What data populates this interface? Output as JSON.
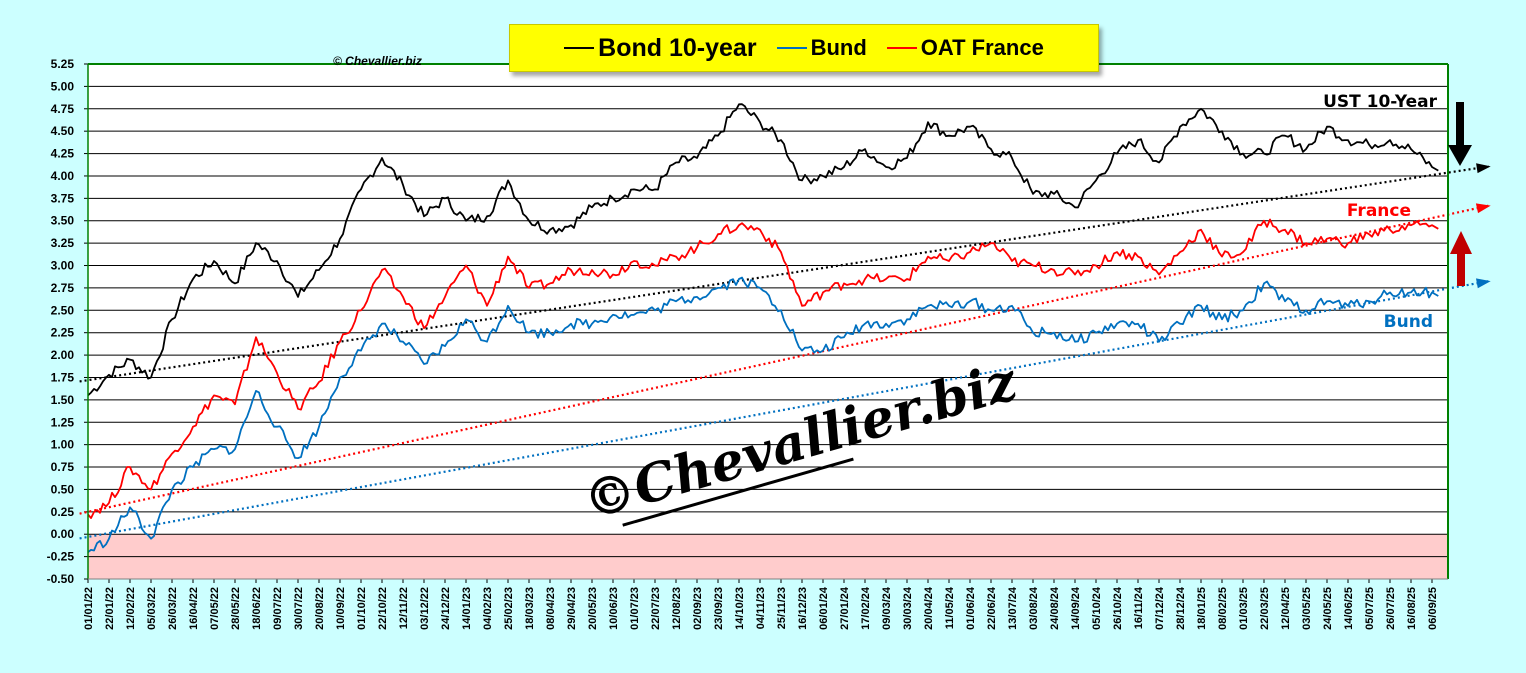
{
  "legend": {
    "items": [
      {
        "label": "Bond 10-year",
        "color": "#000000"
      },
      {
        "label": "Bund",
        "color": "#0070c0"
      },
      {
        "label": "OAT France",
        "color": "#ff0000"
      }
    ]
  },
  "copyright_small": "© Chevallier.biz",
  "watermark": "©Chevallier.biz",
  "chart_data": {
    "type": "line",
    "title": "Bond 10-year / Bund / OAT France",
    "xlabel": "",
    "ylabel": "",
    "ylim": [
      -0.5,
      5.25
    ],
    "ytick_step": 0.25,
    "yticks": [
      "5.25",
      "5.00",
      "4.75",
      "4.50",
      "4.25",
      "4.00",
      "3.75",
      "3.50",
      "3.25",
      "3.00",
      "2.75",
      "2.50",
      "2.25",
      "2.00",
      "1.75",
      "1.50",
      "1.25",
      "1.00",
      "0.75",
      "0.50",
      "0.25",
      "0.00",
      "-0.25",
      "-0.50"
    ],
    "grid": true,
    "negative_zone_color": "#ffcccc",
    "x": [
      "01/01/22",
      "22/01/22",
      "12/02/22",
      "05/03/22",
      "26/03/22",
      "16/04/22",
      "07/05/22",
      "28/05/22",
      "18/06/22",
      "09/07/22",
      "30/07/22",
      "20/08/22",
      "10/09/22",
      "01/10/22",
      "22/10/22",
      "12/11/22",
      "03/12/22",
      "24/12/22",
      "14/01/23",
      "04/02/23",
      "25/02/23",
      "18/03/23",
      "08/04/23",
      "29/04/23",
      "20/05/23",
      "10/06/23",
      "01/07/23",
      "22/07/23",
      "12/08/23",
      "02/09/23",
      "23/09/23",
      "14/10/23",
      "04/11/23",
      "25/11/23",
      "16/12/23",
      "06/01/24",
      "27/01/24",
      "17/02/24",
      "09/03/24",
      "30/03/24",
      "20/04/24",
      "11/05/24",
      "01/06/24",
      "22/06/24",
      "13/07/24",
      "03/08/24",
      "24/08/24",
      "14/09/24",
      "05/10/24",
      "26/10/24",
      "16/11/24",
      "07/12/24",
      "28/12/24",
      "18/01/25",
      "08/02/25",
      "01/03/25",
      "22/03/25",
      "12/04/25",
      "03/05/25",
      "24/05/25",
      "14/06/25",
      "05/07/25",
      "26/07/25",
      "16/08/25",
      "06/09/25"
    ],
    "series": [
      {
        "name": "Bond 10-year",
        "label": "UST 10-Year",
        "color": "#000000",
        "values": [
          1.55,
          1.78,
          1.95,
          1.75,
          2.4,
          2.85,
          3.05,
          2.8,
          3.25,
          3.05,
          2.65,
          2.95,
          3.3,
          3.85,
          4.2,
          3.9,
          3.55,
          3.75,
          3.5,
          3.55,
          3.95,
          3.5,
          3.4,
          3.45,
          3.65,
          3.75,
          3.85,
          3.85,
          4.15,
          4.2,
          4.45,
          4.8,
          4.6,
          4.4,
          3.95,
          4.0,
          4.1,
          4.3,
          4.1,
          4.2,
          4.6,
          4.45,
          4.55,
          4.3,
          4.2,
          3.8,
          3.8,
          3.65,
          3.95,
          4.25,
          4.4,
          4.15,
          4.55,
          4.75,
          4.5,
          4.25,
          4.25,
          4.45,
          4.3,
          4.55,
          4.4,
          4.35,
          4.4,
          4.3,
          4.1
        ],
        "trend": [
          1.72,
          4.01
        ]
      },
      {
        "name": "OAT France",
        "label": "France",
        "color": "#ff0000",
        "values": [
          0.22,
          0.35,
          0.75,
          0.5,
          0.9,
          1.2,
          1.55,
          1.45,
          2.2,
          1.8,
          1.4,
          1.7,
          2.15,
          2.5,
          2.95,
          2.65,
          2.3,
          2.65,
          3.0,
          2.55,
          3.1,
          2.75,
          2.8,
          2.95,
          2.95,
          2.9,
          3.05,
          3.0,
          3.1,
          3.2,
          3.35,
          3.45,
          3.4,
          3.15,
          2.55,
          2.7,
          2.8,
          2.85,
          2.85,
          2.85,
          3.1,
          3.05,
          3.15,
          3.25,
          3.05,
          3.0,
          2.95,
          2.9,
          3.0,
          3.15,
          3.1,
          2.9,
          3.15,
          3.4,
          3.1,
          3.15,
          3.5,
          3.4,
          3.25,
          3.3,
          3.25,
          3.35,
          3.4,
          3.45,
          3.45
        ],
        "trend": [
          0.25,
          3.53
        ]
      },
      {
        "name": "Bund",
        "label": "Bund",
        "color": "#0070c0",
        "values": [
          -0.2,
          -0.05,
          0.3,
          -0.05,
          0.5,
          0.75,
          0.95,
          0.95,
          1.6,
          1.2,
          0.85,
          1.2,
          1.75,
          2.05,
          2.35,
          2.15,
          1.9,
          2.1,
          2.4,
          2.15,
          2.55,
          2.25,
          2.25,
          2.35,
          2.35,
          2.45,
          2.45,
          2.5,
          2.6,
          2.65,
          2.75,
          2.85,
          2.75,
          2.5,
          2.05,
          2.05,
          2.2,
          2.35,
          2.35,
          2.4,
          2.55,
          2.55,
          2.6,
          2.5,
          2.55,
          2.25,
          2.25,
          2.15,
          2.25,
          2.35,
          2.35,
          2.15,
          2.35,
          2.55,
          2.4,
          2.5,
          2.8,
          2.6,
          2.5,
          2.6,
          2.55,
          2.6,
          2.7,
          2.7,
          2.7
        ],
        "trend": [
          -0.03,
          2.71
        ]
      }
    ],
    "annotations": [
      {
        "text": "UST 10-Year",
        "color": "#000000"
      },
      {
        "text": "France",
        "color": "#ff0000"
      },
      {
        "text": "Bund",
        "color": "#0070c0"
      }
    ],
    "arrows": [
      {
        "direction": "down",
        "color": "#000000"
      },
      {
        "direction": "up",
        "color": "#c00000"
      }
    ]
  }
}
